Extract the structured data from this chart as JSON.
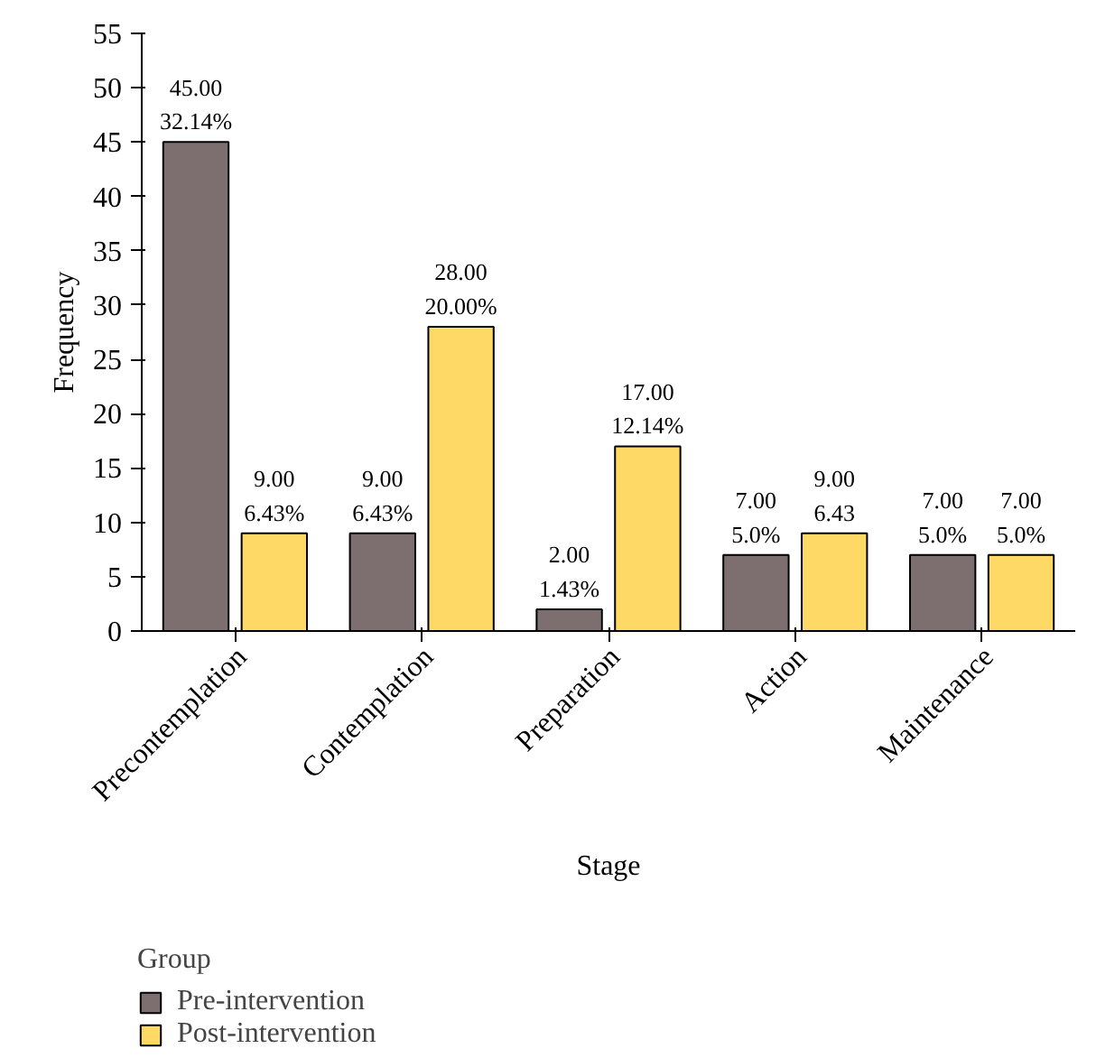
{
  "chart_data": {
    "type": "bar",
    "xlabel": "Stage",
    "ylabel": "Frequency",
    "legend_title": "Group",
    "legend": "bottom left",
    "categories": [
      "Precontemplation",
      "Contemplation",
      "Preparation",
      "Action",
      "Maintenance"
    ],
    "ylim": [
      0,
      55
    ],
    "yticks": [
      0,
      5,
      10,
      15,
      20,
      25,
      30,
      35,
      40,
      45,
      50,
      55
    ],
    "grid": false,
    "series": [
      {
        "name": "Pre-intervention",
        "color": "#7d6f70",
        "values": [
          45,
          9,
          2,
          7,
          7
        ],
        "value_labels": [
          "45.00\n32.14%",
          "9.00\n6.43%",
          "2.00\n1.43%",
          "7.00\n5.0%",
          "7.00\n5.0%"
        ]
      },
      {
        "name": "Post-intervention",
        "color": "#fed966",
        "values": [
          9,
          28,
          17,
          9,
          7
        ],
        "value_labels": [
          "9.00\n6.43%",
          "28.00\n20.00%",
          "17.00\n12.14%",
          "9.00\n6.43",
          "7.00\n5.0%"
        ]
      }
    ]
  }
}
